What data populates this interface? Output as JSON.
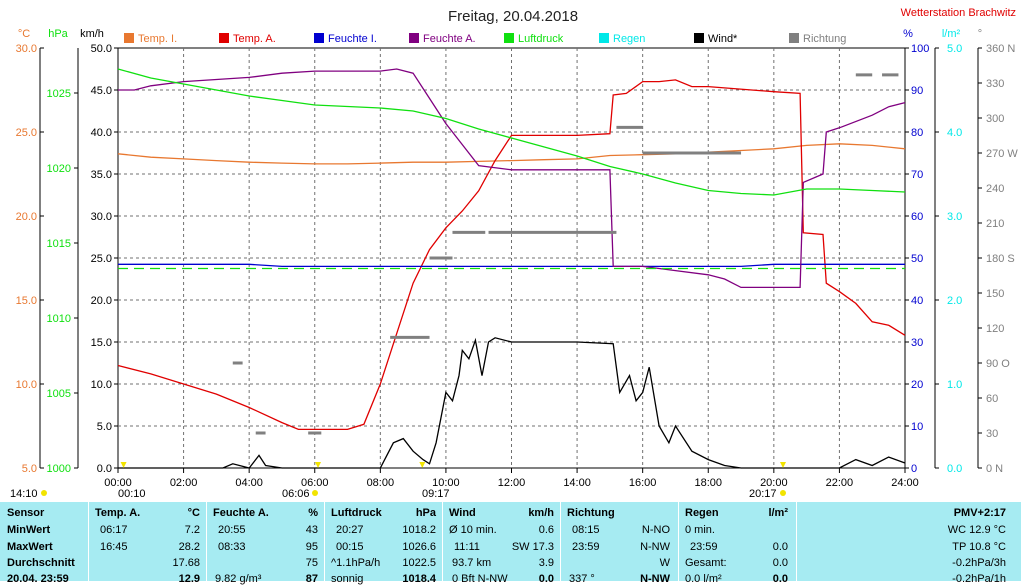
{
  "header": {
    "title": "Freitag, 20.04.2018",
    "station": "Wetterstation Brachwitz"
  },
  "colors": {
    "temp_i": "#e87830",
    "temp_a": "#e00000",
    "feuchte_i": "#0000d0",
    "feuchte_a": "#800080",
    "luftdruck": "#10e010",
    "regen": "#00e8e8",
    "wind": "#000000",
    "richtung": "#808080",
    "grid": "#707070",
    "info_bg": "#a6ebf2",
    "station": "#e00000"
  },
  "chart_data": {
    "type": "line",
    "title": "Freitag, 20.04.2018",
    "x_ticks": [
      "00:00",
      "02:00",
      "04:00",
      "06:00",
      "08:00",
      "10:00",
      "12:00",
      "14:00",
      "16:00",
      "18:00",
      "20:00",
      "22:00",
      "24:00"
    ],
    "x_range_hours": [
      0,
      24
    ],
    "axes": {
      "temp_c": {
        "unit": "°C",
        "range": [
          5,
          30
        ],
        "ticks": [
          "5.0",
          "10.0",
          "15.0",
          "20.0",
          "25.0",
          "30.0"
        ]
      },
      "pressure_hpa": {
        "unit": "hPa",
        "range": [
          1000,
          1028
        ],
        "ticks": [
          "1000",
          "1005",
          "1010",
          "1015",
          "1020",
          "1025"
        ]
      },
      "wind_kmh": {
        "unit": "km/h",
        "range": [
          0,
          50
        ],
        "ticks": [
          "0.0",
          "5.0",
          "10.0",
          "15.0",
          "20.0",
          "25.0",
          "30.0",
          "35.0",
          "40.0",
          "45.0",
          "50.0"
        ]
      },
      "humidity_pct": {
        "unit": "%",
        "range": [
          0,
          100
        ],
        "ticks": [
          "0",
          "10",
          "20",
          "30",
          "40",
          "50",
          "60",
          "70",
          "80",
          "90",
          "100"
        ]
      },
      "rain_lm2": {
        "unit": "l/m²",
        "range": [
          0,
          5
        ],
        "ticks": [
          "0.0",
          "1.0",
          "2.0",
          "3.0",
          "4.0",
          "5.0"
        ]
      },
      "direction_deg": {
        "unit": "°",
        "range": [
          0,
          360
        ],
        "ticks": [
          "0 N",
          "30",
          "60",
          "90 O",
          "120",
          "150",
          "180 S",
          "210",
          "240",
          "270 W",
          "300",
          "330",
          "360 N"
        ]
      }
    },
    "legend": [
      "Temp. I.",
      "Temp. A.",
      "Feuchte I.",
      "Feuchte A.",
      "Luftdruck",
      "Regen",
      "Wind*",
      "Richtung"
    ],
    "series": [
      {
        "name": "Temp. I.",
        "axis": "temp_c",
        "points": [
          [
            0,
            23.7
          ],
          [
            1,
            23.5
          ],
          [
            2,
            23.4
          ],
          [
            3,
            23.3
          ],
          [
            4,
            23.2
          ],
          [
            5,
            23.15
          ],
          [
            6,
            23.1
          ],
          [
            7,
            23.1
          ],
          [
            8,
            23.15
          ],
          [
            9,
            23.2
          ],
          [
            10,
            23.2
          ],
          [
            11,
            23.25
          ],
          [
            12,
            23.3
          ],
          [
            13,
            23.35
          ],
          [
            14,
            23.4
          ],
          [
            15,
            23.6
          ],
          [
            16,
            23.65
          ],
          [
            17,
            23.7
          ],
          [
            18,
            23.8
          ],
          [
            19,
            23.9
          ],
          [
            20,
            24.0
          ],
          [
            21,
            24.2
          ],
          [
            22,
            24.3
          ],
          [
            23,
            24.2
          ],
          [
            24,
            24.0
          ]
        ]
      },
      {
        "name": "Temp. A.",
        "axis": "temp_c",
        "points": [
          [
            0,
            11.1
          ],
          [
            1,
            10.6
          ],
          [
            2,
            10.0
          ],
          [
            3,
            9.4
          ],
          [
            4,
            8.6
          ],
          [
            5,
            7.7
          ],
          [
            5.5,
            7.3
          ],
          [
            6,
            7.3
          ],
          [
            7,
            7.3
          ],
          [
            7.5,
            7.6
          ],
          [
            8,
            10.0
          ],
          [
            8.5,
            13.0
          ],
          [
            9,
            16.0
          ],
          [
            9.5,
            18.0
          ],
          [
            10,
            19.3
          ],
          [
            10.5,
            20.3
          ],
          [
            11,
            21.5
          ],
          [
            11.5,
            23.3
          ],
          [
            12,
            24.8
          ],
          [
            14,
            24.8
          ],
          [
            15,
            24.9
          ],
          [
            15.1,
            27.2
          ],
          [
            15.5,
            27.3
          ],
          [
            16,
            28.0
          ],
          [
            16.5,
            28.0
          ],
          [
            17,
            28.1
          ],
          [
            17.5,
            27.7
          ],
          [
            18,
            27.7
          ],
          [
            20,
            27.4
          ],
          [
            20.8,
            27.3
          ],
          [
            20.9,
            19.0
          ],
          [
            21.5,
            18.9
          ],
          [
            21.6,
            16.0
          ],
          [
            22,
            15.5
          ],
          [
            22.5,
            14.8
          ],
          [
            23,
            13.7
          ],
          [
            23.5,
            13.5
          ],
          [
            24,
            12.9
          ]
        ]
      },
      {
        "name": "Feuchte I.",
        "axis": "humidity_pct",
        "points": [
          [
            0,
            48.5
          ],
          [
            1,
            48.5
          ],
          [
            2,
            48.5
          ],
          [
            3,
            48.5
          ],
          [
            4,
            48.5
          ],
          [
            5,
            48
          ],
          [
            6,
            48
          ],
          [
            7,
            48
          ],
          [
            8,
            48
          ],
          [
            9,
            48
          ],
          [
            10,
            48
          ],
          [
            11,
            48
          ],
          [
            12,
            48
          ],
          [
            13,
            48
          ],
          [
            14,
            48
          ],
          [
            15,
            48
          ],
          [
            16,
            48
          ],
          [
            17,
            48
          ],
          [
            18,
            48
          ],
          [
            19,
            48
          ],
          [
            20,
            48.5
          ],
          [
            21,
            48.5
          ],
          [
            22,
            48.5
          ],
          [
            23,
            48.5
          ],
          [
            24,
            48.5
          ]
        ]
      },
      {
        "name": "Feuchte A.",
        "axis": "humidity_pct",
        "points": [
          [
            0,
            90
          ],
          [
            0.5,
            90
          ],
          [
            1,
            91
          ],
          [
            2,
            92
          ],
          [
            3,
            92.5
          ],
          [
            4,
            93
          ],
          [
            5,
            94
          ],
          [
            6,
            94.5
          ],
          [
            7,
            94.5
          ],
          [
            8,
            94.5
          ],
          [
            8.5,
            95
          ],
          [
            9,
            94
          ],
          [
            9.5,
            88
          ],
          [
            10,
            82
          ],
          [
            10.5,
            77
          ],
          [
            11,
            72
          ],
          [
            12,
            71
          ],
          [
            13,
            71
          ],
          [
            14,
            71
          ],
          [
            15,
            71
          ],
          [
            15.1,
            48
          ],
          [
            16,
            48
          ],
          [
            17,
            47
          ],
          [
            18,
            46
          ],
          [
            18.5,
            45
          ],
          [
            19,
            43
          ],
          [
            20,
            43
          ],
          [
            20.8,
            43
          ],
          [
            20.9,
            68
          ],
          [
            21.5,
            70
          ],
          [
            21.6,
            80
          ],
          [
            22,
            81
          ],
          [
            23,
            84
          ],
          [
            23.5,
            86
          ],
          [
            24,
            87
          ]
        ]
      },
      {
        "name": "Luftdruck",
        "axis": "pressure_hpa",
        "points": [
          [
            0,
            1026.6
          ],
          [
            1,
            1026.0
          ],
          [
            2,
            1025.6
          ],
          [
            3,
            1025.2
          ],
          [
            4,
            1024.8
          ],
          [
            5,
            1024.5
          ],
          [
            6,
            1024.2
          ],
          [
            7,
            1024.1
          ],
          [
            8,
            1024.0
          ],
          [
            9,
            1023.8
          ],
          [
            10,
            1023.3
          ],
          [
            11,
            1022.6
          ],
          [
            12,
            1022.0
          ],
          [
            13,
            1021.4
          ],
          [
            14,
            1020.8
          ],
          [
            15,
            1020.1
          ],
          [
            16,
            1019.6
          ],
          [
            17,
            1019.0
          ],
          [
            18,
            1018.5
          ],
          [
            19,
            1018.3
          ],
          [
            20,
            1018.2
          ],
          [
            21,
            1018.6
          ],
          [
            22,
            1018.6
          ],
          [
            23,
            1018.5
          ],
          [
            24,
            1018.4
          ]
        ]
      },
      {
        "name": "Luftdruck Mittel",
        "axis": "pressure_hpa",
        "dashed": true,
        "points": [
          [
            0,
            1013.3
          ],
          [
            24,
            1013.3
          ]
        ]
      },
      {
        "name": "Wind*",
        "axis": "wind_kmh",
        "points": [
          [
            0,
            0
          ],
          [
            3.2,
            0
          ],
          [
            3.5,
            0.5
          ],
          [
            4,
            0
          ],
          [
            4.3,
            1.5
          ],
          [
            4.5,
            0.3
          ],
          [
            5,
            0
          ],
          [
            7,
            0
          ],
          [
            8,
            0
          ],
          [
            8.4,
            3
          ],
          [
            8.7,
            3.5
          ],
          [
            9,
            2
          ],
          [
            9.3,
            1
          ],
          [
            9.5,
            0.5
          ],
          [
            9.7,
            3
          ],
          [
            10,
            9
          ],
          [
            10.2,
            8
          ],
          [
            10.4,
            11
          ],
          [
            10.5,
            14
          ],
          [
            10.7,
            13
          ],
          [
            10.9,
            15.2
          ],
          [
            11.1,
            11
          ],
          [
            11.3,
            15
          ],
          [
            11.5,
            15.5
          ],
          [
            12,
            15
          ],
          [
            14,
            15
          ],
          [
            15.1,
            14.8
          ],
          [
            15.3,
            9
          ],
          [
            15.6,
            11
          ],
          [
            15.8,
            8
          ],
          [
            16,
            9
          ],
          [
            16.2,
            12
          ],
          [
            16.5,
            5
          ],
          [
            16.8,
            3
          ],
          [
            17,
            5
          ],
          [
            17.5,
            2
          ],
          [
            18,
            1
          ],
          [
            18.5,
            0.3
          ],
          [
            19,
            0
          ],
          [
            22,
            0
          ],
          [
            22.5,
            1
          ],
          [
            23,
            0.3
          ],
          [
            23.5,
            1.3
          ],
          [
            24,
            0.6
          ]
        ]
      },
      {
        "name": "Richtung",
        "axis": "direction_deg",
        "segments": [
          [
            3.5,
            3.8,
            90
          ],
          [
            4.2,
            4.5,
            30
          ],
          [
            5.8,
            6.2,
            30
          ],
          [
            8.3,
            9.5,
            112
          ],
          [
            9.5,
            10.2,
            180
          ],
          [
            10.2,
            11.2,
            202
          ],
          [
            11.3,
            15.2,
            202
          ],
          [
            15.2,
            16,
            292
          ],
          [
            16,
            19,
            270
          ],
          [
            22.5,
            23,
            337
          ],
          [
            23.3,
            23.8,
            337
          ]
        ]
      }
    ]
  },
  "footer": {
    "markers": {
      "t1410": "14:10",
      "t0010": "00:10",
      "t0606": "06:06",
      "t0917": "09:17",
      "t2017": "20:17"
    },
    "sensor": {
      "h": "Sensor",
      "min": "MinWert",
      "max": "MaxWert",
      "avg": "Durchschnitt",
      "now": "20.04. 23:59"
    },
    "temp": {
      "h": "Temp. A.",
      "unit": "°C",
      "min_t": "06:17",
      "min_v": "7.2",
      "max_t": "16:45",
      "max_v": "28.2",
      "avg_v": "17.68",
      "now_v": "12.9"
    },
    "feuchte": {
      "h": "Feuchte A.",
      "unit": "%",
      "min_t": "20:55",
      "min_v": "43",
      "max_t": "08:33",
      "max_v": "95",
      "avg_v": "75",
      "now_l": "9.82 g/m³",
      "now_v": "87"
    },
    "druck": {
      "h": "Luftdruck",
      "unit": "hPa",
      "min_t": "20:27",
      "min_v": "1018.2",
      "max_t": "00:15",
      "max_v": "1026.6",
      "avg_l": "^1.1hPa/h",
      "avg_v": "1022.5",
      "now_l": "sonnig",
      "now_v": "1018.4"
    },
    "wind": {
      "h": "Wind",
      "unit": "km/h",
      "r1_l": "Ø 10 min.",
      "r1_v": "0.6",
      "r2_l": "11:11",
      "r2_m": "SW 17.3",
      "r2_v": "",
      "r3_l": "93.7 km",
      "r3_v": "3.9",
      "r4_l": "0 Bft N-NW",
      "r4_v": "0.0"
    },
    "richtung": {
      "h": "Richtung",
      "r1_l": "08:15",
      "r1_v": "N-NO",
      "r2_l": "23:59",
      "r2_v": "N-NW",
      "r3_v": "W",
      "r4_l": "337 °",
      "r4_v": "N-NW"
    },
    "regen": {
      "h": "Regen",
      "unit": "l/m²",
      "r1_l": "0 min.",
      "r2_l": "23:59",
      "r2_v": "0.0",
      "r3_l": "Gesamt:",
      "r3_v": "0.0",
      "r4_l": "0.0 l/m²",
      "r4_v": "0.0"
    },
    "pmv": {
      "h": "PMV+2:17",
      "r1": "WC 12.9 °C",
      "r2": "TP 10.8 °C",
      "r3": "-0.2hPa/3h",
      "r4": "-0.2hPa/1h"
    }
  }
}
